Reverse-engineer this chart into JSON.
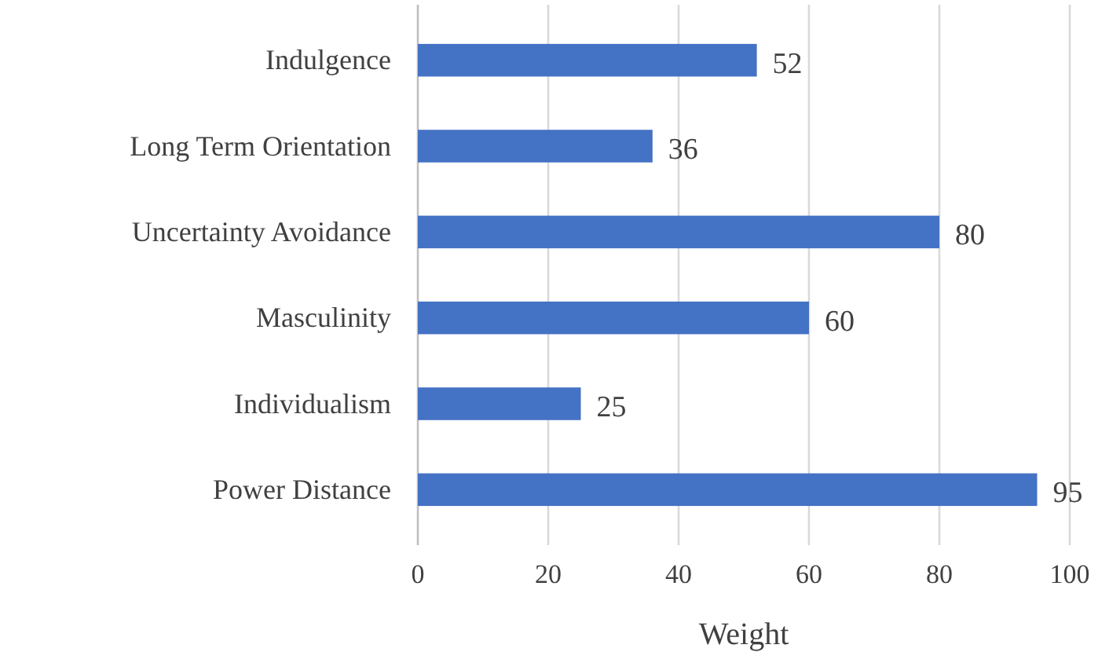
{
  "chart_data": {
    "type": "bar",
    "orientation": "horizontal",
    "xlabel": "Weight",
    "categories": [
      "Indulgence",
      "Long Term Orientation",
      "Uncertainty Avoidance",
      "Masculinity",
      "Individualism",
      "Power Distance"
    ],
    "values": [
      52,
      36,
      80,
      60,
      25,
      95
    ],
    "color": "#4472c4",
    "xlim": [
      0,
      100
    ],
    "xticks": [
      0,
      20,
      40,
      60,
      80,
      100
    ],
    "grid": "x",
    "data_labels": true
  }
}
